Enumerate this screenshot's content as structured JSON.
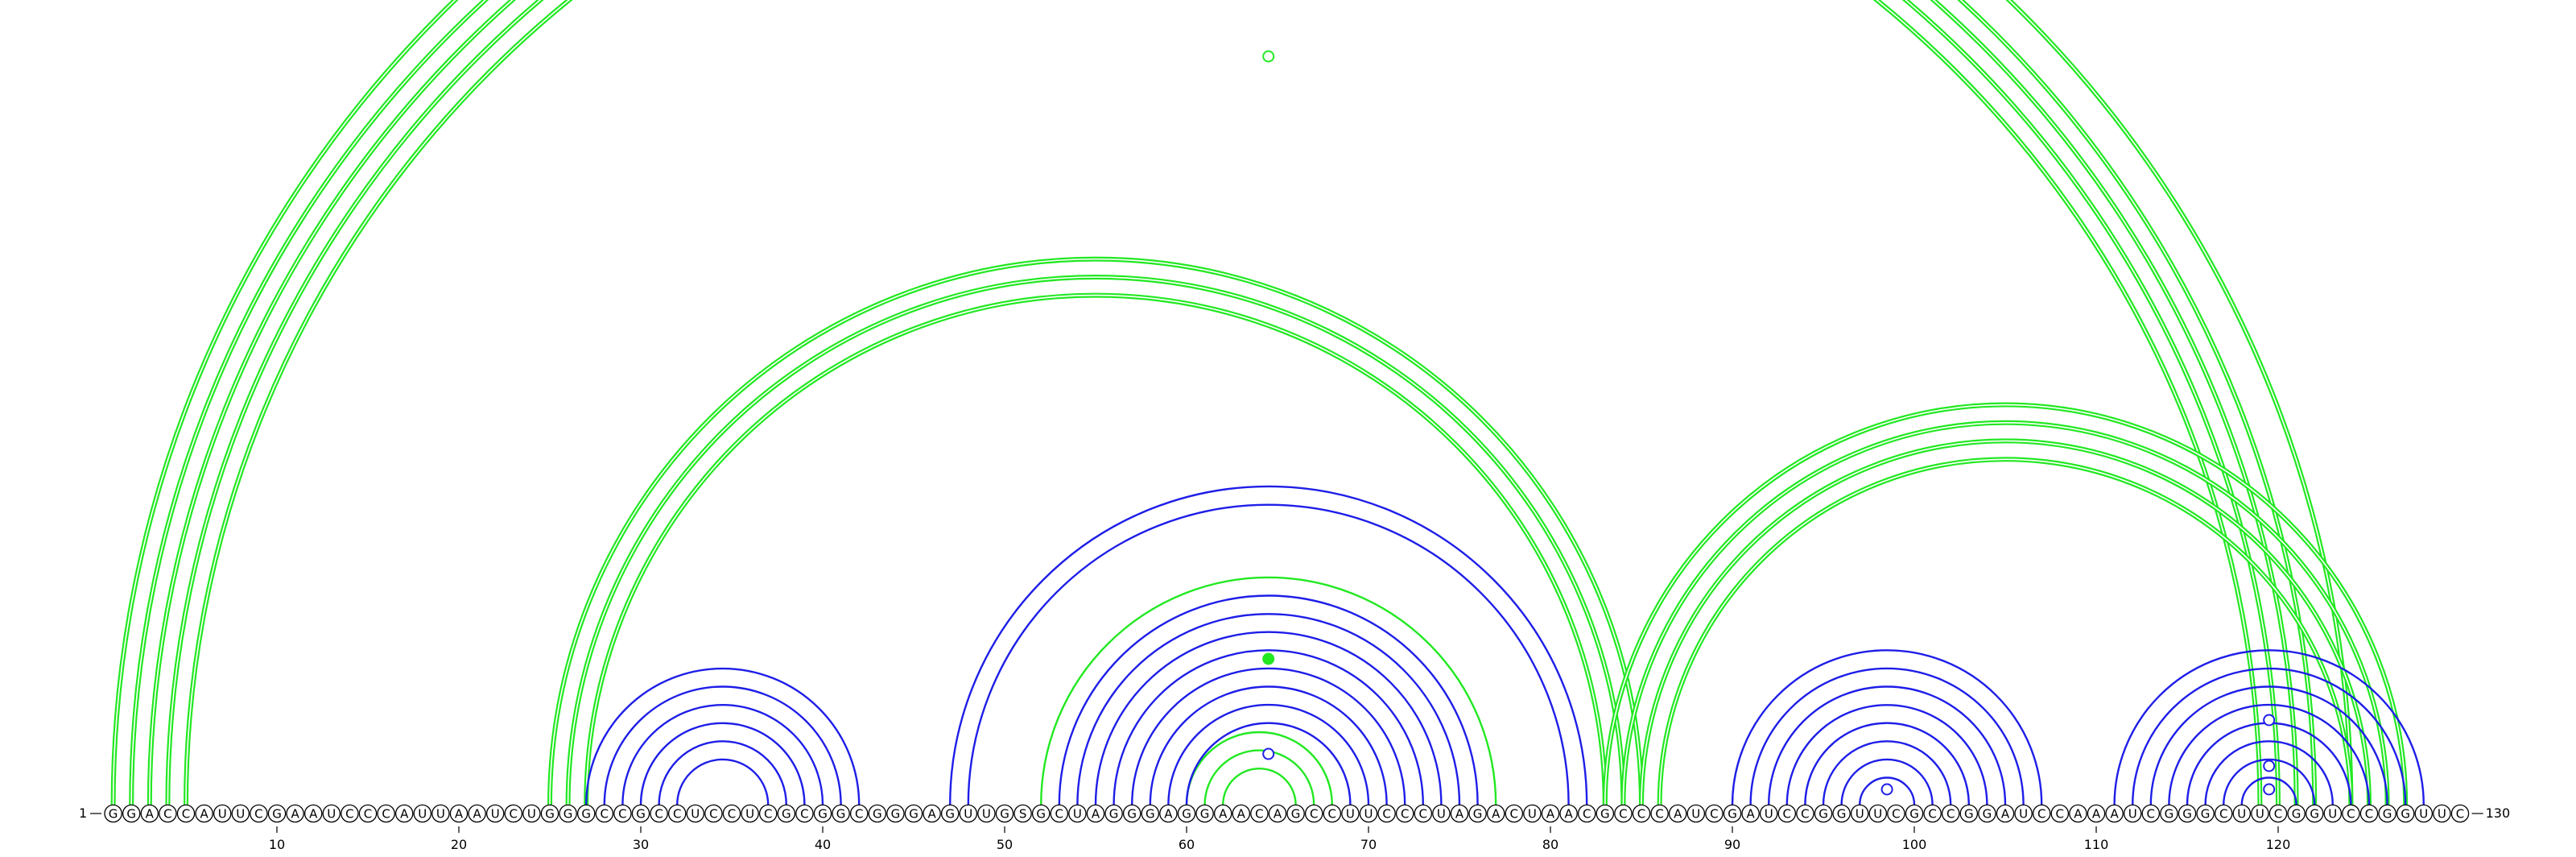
{
  "sequence": "GGACCAUUCGAAUCCCAUUAAUCUGGGCCGCCUCCUCGCGGCGGGAGUUGSGCUAGGGAGGAACAGCCUUCCCUAGACUAACGCCCAUCGAUCCGGUUCGCCGGAUCCAAAUCGGGCUUCGGUCCGGUUC",
  "start_label": "1",
  "end_label": "130",
  "ticks": [
    {
      "pos": 10,
      "label": "10"
    },
    {
      "pos": 20,
      "label": "20"
    },
    {
      "pos": 30,
      "label": "30"
    },
    {
      "pos": 40,
      "label": "40"
    },
    {
      "pos": 50,
      "label": "50"
    },
    {
      "pos": 60,
      "label": "60"
    },
    {
      "pos": 70,
      "label": "70"
    },
    {
      "pos": 80,
      "label": "80"
    },
    {
      "pos": 90,
      "label": "90"
    },
    {
      "pos": 100,
      "label": "100"
    },
    {
      "pos": 110,
      "label": "110"
    },
    {
      "pos": 120,
      "label": "120"
    }
  ],
  "colors": {
    "green": "#22e822",
    "blue": "#1e1ee8",
    "nucleotide_outline": "#000000",
    "background": "#ffffff"
  },
  "arcs": [
    {
      "i": 1,
      "j": 124,
      "color": "green",
      "style": "double"
    },
    {
      "i": 2,
      "j": 122,
      "color": "green",
      "style": "double"
    },
    {
      "i": 3,
      "j": 121,
      "color": "green",
      "style": "double"
    },
    {
      "i": 4,
      "j": 120,
      "color": "green",
      "style": "double"
    },
    {
      "i": 5,
      "j": 119,
      "color": "green",
      "style": "double"
    },
    {
      "i": 25,
      "j": 85,
      "color": "green",
      "style": "double"
    },
    {
      "i": 26,
      "j": 84,
      "color": "green",
      "style": "double"
    },
    {
      "i": 27,
      "j": 83,
      "color": "green",
      "style": "double"
    },
    {
      "i": 83,
      "j": 127,
      "color": "green",
      "style": "double"
    },
    {
      "i": 84,
      "j": 126,
      "color": "green",
      "style": "double"
    },
    {
      "i": 85,
      "j": 125,
      "color": "green",
      "style": "double"
    },
    {
      "i": 86,
      "j": 124,
      "color": "green",
      "style": "double"
    },
    {
      "i": 52,
      "j": 77,
      "color": "green",
      "style": "single"
    },
    {
      "i": 60,
      "j": 68,
      "color": "green",
      "style": "single"
    },
    {
      "i": 61,
      "j": 67,
      "color": "green",
      "style": "single"
    },
    {
      "i": 62,
      "j": 66,
      "color": "green",
      "style": "single"
    },
    {
      "i": 27,
      "j": 42,
      "color": "blue",
      "style": "single"
    },
    {
      "i": 28,
      "j": 41,
      "color": "blue",
      "style": "single"
    },
    {
      "i": 29,
      "j": 40,
      "color": "blue",
      "style": "single"
    },
    {
      "i": 30,
      "j": 39,
      "color": "blue",
      "style": "single"
    },
    {
      "i": 31,
      "j": 38,
      "color": "blue",
      "style": "single"
    },
    {
      "i": 32,
      "j": 37,
      "color": "blue",
      "style": "single"
    },
    {
      "i": 47,
      "j": 82,
      "color": "blue",
      "style": "single"
    },
    {
      "i": 48,
      "j": 81,
      "color": "blue",
      "style": "single"
    },
    {
      "i": 53,
      "j": 76,
      "color": "blue",
      "style": "single"
    },
    {
      "i": 54,
      "j": 75,
      "color": "blue",
      "style": "single"
    },
    {
      "i": 55,
      "j": 74,
      "color": "blue",
      "style": "single"
    },
    {
      "i": 56,
      "j": 73,
      "color": "blue",
      "style": "single"
    },
    {
      "i": 57,
      "j": 72,
      "color": "blue",
      "style": "single"
    },
    {
      "i": 58,
      "j": 71,
      "color": "blue",
      "style": "single"
    },
    {
      "i": 59,
      "j": 70,
      "color": "blue",
      "style": "single"
    },
    {
      "i": 60,
      "j": 69,
      "color": "blue",
      "style": "single"
    },
    {
      "i": 90,
      "j": 107,
      "color": "blue",
      "style": "single"
    },
    {
      "i": 91,
      "j": 106,
      "color": "blue",
      "style": "single"
    },
    {
      "i": 92,
      "j": 105,
      "color": "blue",
      "style": "single"
    },
    {
      "i": 93,
      "j": 104,
      "color": "blue",
      "style": "single"
    },
    {
      "i": 94,
      "j": 103,
      "color": "blue",
      "style": "single"
    },
    {
      "i": 95,
      "j": 102,
      "color": "blue",
      "style": "single"
    },
    {
      "i": 96,
      "j": 101,
      "color": "blue",
      "style": "single"
    },
    {
      "i": 97,
      "j": 100,
      "color": "blue",
      "style": "single"
    },
    {
      "i": 111,
      "j": 128,
      "color": "blue",
      "style": "single"
    },
    {
      "i": 112,
      "j": 127,
      "color": "blue",
      "style": "single"
    },
    {
      "i": 113,
      "j": 126,
      "color": "blue",
      "style": "single"
    },
    {
      "i": 114,
      "j": 125,
      "color": "blue",
      "style": "single"
    },
    {
      "i": 115,
      "j": 124,
      "color": "blue",
      "style": "single"
    },
    {
      "i": 116,
      "j": 123,
      "color": "blue",
      "style": "single"
    },
    {
      "i": 117,
      "j": 122,
      "color": "blue",
      "style": "single"
    },
    {
      "i": 118,
      "j": 121,
      "color": "blue",
      "style": "single"
    }
  ],
  "markers": [
    {
      "pos": 64.5,
      "level": 1,
      "color": "green",
      "filled": false
    },
    {
      "pos": 64.5,
      "level": 2,
      "color": "green",
      "filled": true
    },
    {
      "pos": 64.5,
      "level": 3,
      "color": "blue",
      "filled": false
    },
    {
      "pos": 98.5,
      "level": 3,
      "color": "blue",
      "filled": false
    },
    {
      "pos": 119.5,
      "level": 3,
      "color": "blue",
      "filled": false
    },
    {
      "pos": 119.5,
      "level": 4,
      "color": "blue",
      "filled": false
    },
    {
      "pos": 119.5,
      "level": 5,
      "color": "blue",
      "filled": false
    }
  ]
}
